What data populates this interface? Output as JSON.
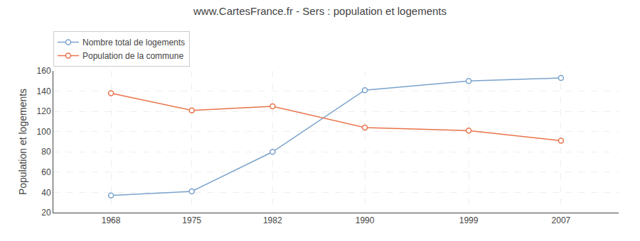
{
  "chart_data": {
    "type": "line",
    "title": "www.CartesFrance.fr - Sers : population et logements",
    "ylabel": "Population et logements",
    "x": [
      1968,
      1975,
      1982,
      1990,
      1999,
      2007
    ],
    "series": [
      {
        "name": "Nombre total de logements",
        "color": "#7aa3cc",
        "values": [
          37,
          41,
          80,
          141,
          150,
          153
        ]
      },
      {
        "name": "Population de la commune",
        "color": "#e8734a",
        "values": [
          138,
          121,
          125,
          104,
          101,
          91
        ]
      }
    ],
    "xlim": [
      1963,
      2012
    ],
    "xticks": [
      1968,
      1975,
      1982,
      1990,
      1999,
      2007
    ],
    "ylim": [
      20,
      160
    ],
    "yticks": [
      20,
      40,
      60,
      80,
      100,
      120,
      140,
      160
    ],
    "grid": true,
    "legend": "upper left",
    "marker": "circle"
  }
}
